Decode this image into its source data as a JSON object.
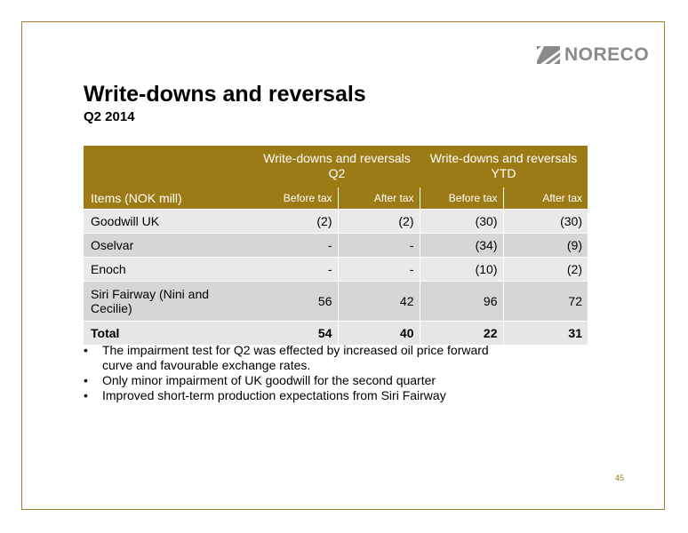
{
  "logo": {
    "text": "NORECO"
  },
  "title": "Write-downs and reversals",
  "subtitle": "Q2 2014",
  "table": {
    "group_headers": [
      "Write-downs and reversals Q2",
      "Write-downs and reversals YTD"
    ],
    "items_header": "Items  (NOK mill)",
    "sub_headers": [
      "Before tax",
      "After tax",
      "Before tax",
      "After tax"
    ],
    "rows": [
      {
        "label": "Goodwill UK",
        "values": [
          "(2)",
          "(2)",
          "(30)",
          "(30)"
        ]
      },
      {
        "label": "Oselvar",
        "values": [
          "-",
          "-",
          "(34)",
          "(9)"
        ]
      },
      {
        "label": "Enoch",
        "values": [
          "-",
          "-",
          "(10)",
          "(2)"
        ]
      },
      {
        "label": "Siri Fairway (Nini and Cecilie)",
        "values": [
          "56",
          "42",
          "96",
          "72"
        ]
      }
    ],
    "total": {
      "label": "Total",
      "values": [
        "54",
        "40",
        "22",
        "31"
      ]
    }
  },
  "bullets": [
    "The impairment test for Q2 was effected by increased oil price forward curve and favourable exchange rates.",
    "Only minor impairment of UK goodwill for the second quarter",
    "Improved short-term production expectations from Siri Fairway"
  ],
  "page_number": "45",
  "colors": {
    "accent": "#9c7a15",
    "frame": "#a07d2a",
    "logo": "#8a8a8a"
  }
}
